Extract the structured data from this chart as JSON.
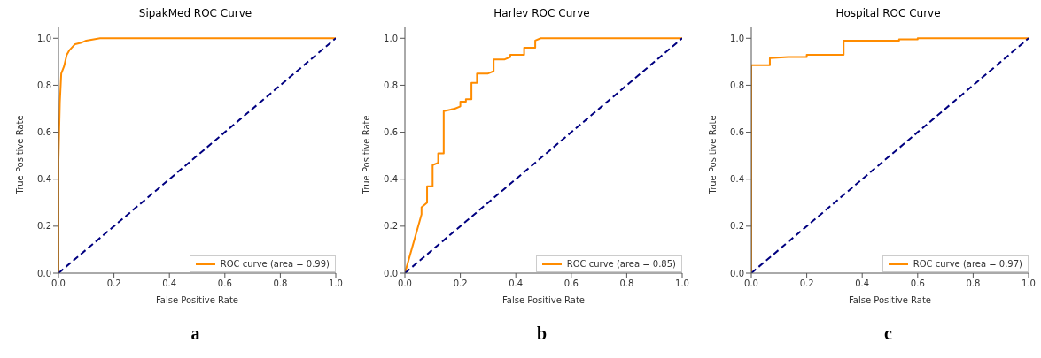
{
  "chart_data": [
    {
      "type": "line",
      "title": "SipakMed ROC Curve",
      "xlabel": "False Positive Rate",
      "ylabel": "True Positive Rate",
      "xlim": [
        0,
        1
      ],
      "ylim": [
        0,
        1.05
      ],
      "xticks": [
        {
          "value": 0,
          "label": "0.0"
        },
        {
          "value": 0.2,
          "label": "0.2"
        },
        {
          "value": 0.4,
          "label": "0.4"
        },
        {
          "value": 0.6,
          "label": "0.6"
        },
        {
          "value": 0.8,
          "label": "0.8"
        },
        {
          "value": 1,
          "label": "1.0"
        }
      ],
      "yticks": [
        {
          "value": 0,
          "label": "0.0"
        },
        {
          "value": 0.2,
          "label": "0.2"
        },
        {
          "value": 0.4,
          "label": "0.4"
        },
        {
          "value": 0.6,
          "label": "0.6"
        },
        {
          "value": 0.8,
          "label": "0.8"
        },
        {
          "value": 1,
          "label": "1.0"
        }
      ],
      "grid": false,
      "legend": "bottom right",
      "annotations": [
        "a"
      ],
      "series": [
        {
          "name": "ROC curve (area = 0.99)",
          "color": "#ff8c00",
          "line_style": "solid",
          "x": [
            0,
            0,
            0.005,
            0.01,
            0.02,
            0.03,
            0.04,
            0.06,
            0.08,
            0.1,
            0.15,
            1
          ],
          "values": [
            0,
            0.48,
            0.73,
            0.85,
            0.88,
            0.93,
            0.95,
            0.975,
            0.98,
            0.99,
            1,
            1
          ]
        },
        {
          "color": "#000080",
          "line_style": "dashed",
          "x": [
            0,
            1
          ],
          "values": [
            0,
            1
          ]
        }
      ]
    },
    {
      "type": "line",
      "title": "Harlev ROC Curve",
      "xlabel": "False Positive Rate",
      "ylabel": "True Positive Rate",
      "xlim": [
        0,
        1
      ],
      "ylim": [
        0,
        1.05
      ],
      "xticks": [
        {
          "value": 0,
          "label": "0.0"
        },
        {
          "value": 0.2,
          "label": "0.2"
        },
        {
          "value": 0.4,
          "label": "0.4"
        },
        {
          "value": 0.6,
          "label": "0.6"
        },
        {
          "value": 0.8,
          "label": "0.8"
        },
        {
          "value": 1,
          "label": "1.0"
        }
      ],
      "yticks": [
        {
          "value": 0,
          "label": "0.0"
        },
        {
          "value": 0.2,
          "label": "0.2"
        },
        {
          "value": 0.4,
          "label": "0.4"
        },
        {
          "value": 0.6,
          "label": "0.6"
        },
        {
          "value": 0.8,
          "label": "0.8"
        },
        {
          "value": 1,
          "label": "1.0"
        }
      ],
      "grid": false,
      "legend": "bottom right",
      "annotations": [
        "b"
      ],
      "series": [
        {
          "name": "ROC curve (area = 0.85)",
          "color": "#ff8c00",
          "line_style": "solid",
          "x": [
            0,
            0.06,
            0.06,
            0.08,
            0.08,
            0.1,
            0.1,
            0.12,
            0.12,
            0.14,
            0.14,
            0.18,
            0.2,
            0.2,
            0.22,
            0.22,
            0.24,
            0.24,
            0.26,
            0.26,
            0.3,
            0.32,
            0.32,
            0.36,
            0.38,
            0.38,
            0.43,
            0.43,
            0.47,
            0.47,
            0.49,
            1
          ],
          "values": [
            0,
            0.25,
            0.28,
            0.3,
            0.37,
            0.37,
            0.46,
            0.47,
            0.51,
            0.51,
            0.69,
            0.7,
            0.71,
            0.73,
            0.73,
            0.74,
            0.74,
            0.81,
            0.81,
            0.85,
            0.85,
            0.86,
            0.91,
            0.91,
            0.92,
            0.93,
            0.93,
            0.96,
            0.96,
            0.99,
            1,
            1
          ]
        },
        {
          "color": "#000080",
          "line_style": "dashed",
          "x": [
            0,
            1
          ],
          "values": [
            0,
            1
          ]
        }
      ]
    },
    {
      "type": "line",
      "title": "Hospital ROC Curve",
      "xlabel": "False Positive Rate",
      "ylabel": "True Positive Rate",
      "xlim": [
        0,
        1
      ],
      "ylim": [
        0,
        1.05
      ],
      "xticks": [
        {
          "value": 0,
          "label": "0.0"
        },
        {
          "value": 0.2,
          "label": "0.2"
        },
        {
          "value": 0.4,
          "label": "0.4"
        },
        {
          "value": 0.6,
          "label": "0.6"
        },
        {
          "value": 0.8,
          "label": "0.8"
        },
        {
          "value": 1,
          "label": "1.0"
        }
      ],
      "yticks": [
        {
          "value": 0,
          "label": "0.0"
        },
        {
          "value": 0.2,
          "label": "0.2"
        },
        {
          "value": 0.4,
          "label": "0.4"
        },
        {
          "value": 0.6,
          "label": "0.6"
        },
        {
          "value": 0.8,
          "label": "0.8"
        },
        {
          "value": 1,
          "label": "1.0"
        }
      ],
      "grid": false,
      "legend": "bottom right",
      "annotations": [
        "c"
      ],
      "series": [
        {
          "name": "ROC curve (area = 0.97)",
          "color": "#ff8c00",
          "line_style": "solid",
          "x": [
            0,
            0,
            0.067,
            0.067,
            0.133,
            0.2,
            0.2,
            0.333,
            0.333,
            0.533,
            0.533,
            0.6,
            0.6,
            1
          ],
          "values": [
            0,
            0.885,
            0.885,
            0.915,
            0.92,
            0.92,
            0.93,
            0.93,
            0.99,
            0.99,
            0.995,
            0.995,
            1,
            1
          ]
        },
        {
          "color": "#000080",
          "line_style": "dashed",
          "x": [
            0,
            1
          ],
          "values": [
            0,
            1
          ]
        }
      ]
    }
  ]
}
